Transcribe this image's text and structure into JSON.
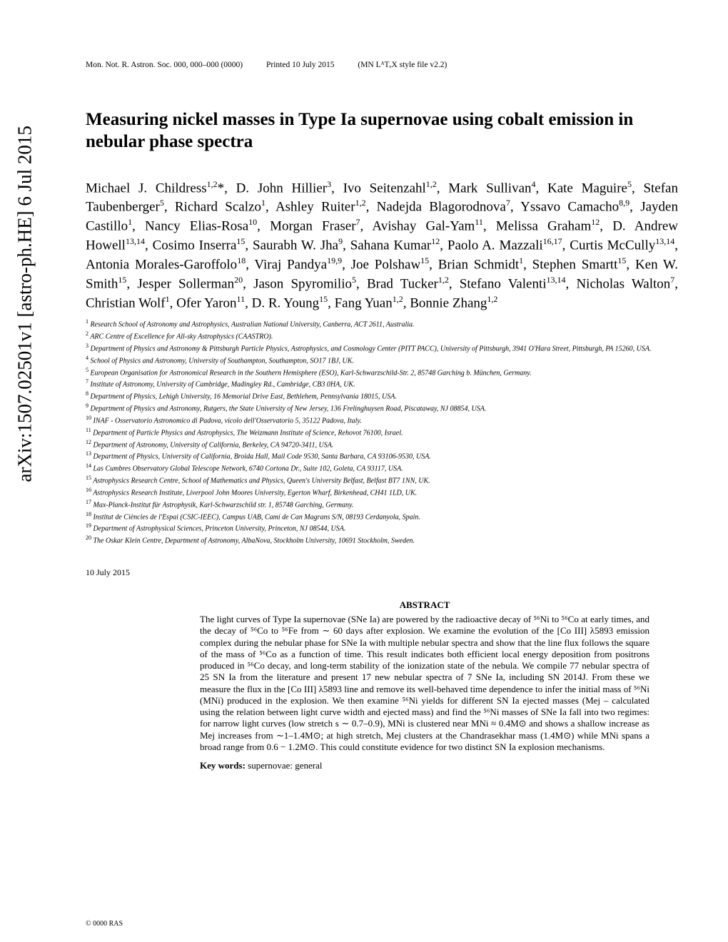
{
  "arxiv_id": "arXiv:1507.02501v1  [astro-ph.HE]  6 Jul 2015",
  "header": {
    "journal": "Mon. Not. R. Astron. Soc. 000, 000–000 (0000)",
    "printed": "Printed 10 July 2015",
    "style": "(MN LᴬTₑX style file v2.2)"
  },
  "title": "Measuring nickel masses in Type Ia supernovae using cobalt emission in nebular phase spectra",
  "authors_html": "Michael J. Childress<sup>1,2</sup>*, D. John Hillier<sup>3</sup>, Ivo Seitenzahl<sup>1,2</sup>, Mark Sullivan<sup>4</sup>, Kate Maguire<sup>5</sup>, Stefan Taubenberger<sup>5</sup>, Richard Scalzo<sup>1</sup>, Ashley Ruiter<sup>1,2</sup>, Nadejda Blagorodnova<sup>7</sup>, Yssavo Camacho<sup>8,9</sup>, Jayden Castillo<sup>1</sup>, Nancy Elias-Rosa<sup>10</sup>, Morgan Fraser<sup>7</sup>, Avishay Gal-Yam<sup>11</sup>, Melissa Graham<sup>12</sup>, D. Andrew Howell<sup>13,14</sup>, Cosimo Inserra<sup>15</sup>, Saurabh W. Jha<sup>9</sup>, Sahana Kumar<sup>12</sup>, Paolo A. Mazzali<sup>16,17</sup>, Curtis McCully<sup>13,14</sup>, Antonia Morales-Garoffolo<sup>18</sup>, Viraj Pandya<sup>19,9</sup>, Joe Polshaw<sup>15</sup>, Brian Schmidt<sup>1</sup>, Stephen Smartt<sup>15</sup>, Ken W. Smith<sup>15</sup>, Jesper Sollerman<sup>20</sup>, Jason Spyromilio<sup>5</sup>, Brad Tucker<sup>1,2</sup>, Stefano Valenti<sup>13,14</sup>, Nicholas Walton<sup>7</sup>, Christian Wolf<sup>1</sup>, Ofer Yaron<sup>11</sup>, D. R. Young<sup>15</sup>, Fang Yuan<sup>1,2</sup>, Bonnie Zhang<sup>1,2</sup>",
  "affiliations": [
    "Research School of Astronomy and Astrophysics, Australian National University, Canberra, ACT 2611, Australia.",
    "ARC Centre of Excellence for All-sky Astrophysics (CAASTRO).",
    "Department of Physics and Astronomy & Pittsburgh Particle Physics, Astrophysics, and Cosmology Center (PITT PACC), University of Pittsburgh, 3941 O'Hara Street, Pittsburgh, PA 15260, USA.",
    "School of Physics and Astronomy, University of Southampton, Southampton, SO17 1BJ, UK.",
    "European Organisation for Astronomical Research in the Southern Hemisphere (ESO), Karl-Schwarzschild-Str. 2, 85748 Garching b. München, Germany.",
    "Institute of Astronomy, University of Cambridge, Madingley Rd., Cambridge, CB3 0HA, UK.",
    "Department of Physics, Lehigh University, 16 Memorial Drive East, Bethlehem, Pennsylvania 18015, USA.",
    "Department of Physics and Astronomy, Rutgers, the State University of New Jersey, 136 Frelinghuysen Road, Piscataway, NJ 08854, USA.",
    "INAF - Osservatorio Astronomico di Padova, vicolo dell'Osservatorio 5, 35122 Padova, Italy.",
    "Department of Particle Physics and Astrophysics, The Weizmann Institute of Science, Rehovot 76100, Israel.",
    "Department of Astronomy, University of California, Berkeley, CA 94720-3411, USA.",
    "Department of Physics, University of California, Broida Hall, Mail Code 9530, Santa Barbara, CA 93106-9530, USA.",
    "Las Cumbres Observatory Global Telescope Network, 6740 Cortona Dr., Suite 102, Goleta, CA 93117, USA.",
    "Astrophysics Research Centre, School of Mathematics and Physics, Queen's University Belfast, Belfast BT7 1NN, UK.",
    "Astrophysics Research Institute, Liverpool John Moores University, Egerton Wharf, Birkenhead, CH41 1LD, UK.",
    "Max-Planck-Institut für Astrophysik, Karl-Schwarzschild str. 1, 85748 Garching, Germany.",
    "Institut de Ciències de l'Espai (CSIC-IEEC), Campus UAB, Camí de Can Magrans S/N, 08193 Cerdanyola, Spain.",
    "Department of Astrophysical Sciences, Princeton University, Princeton, NJ 08544, USA.",
    "The Oskar Klein Centre, Department of Astronomy, AlbaNova, Stockholm University, 10691 Stockholm, Sweden."
  ],
  "affiliation_numbers": [
    "1",
    "2",
    "3",
    "4",
    "5",
    "7",
    "8",
    "9",
    "10",
    "11",
    "12",
    "13",
    "14",
    "15",
    "16",
    "17",
    "18",
    "19",
    "20"
  ],
  "date": "10 July 2015",
  "abstract_heading": "ABSTRACT",
  "abstract_text": "The light curves of Type Ia supernovae (SNe Ia) are powered by the radioactive decay of ⁵⁶Ni to ⁵⁶Co at early times, and the decay of ⁵⁶Co to ⁵⁶Fe from ∼ 60 days after explosion. We examine the evolution of the [Co III] λ5893 emission complex during the nebular phase for SNe Ia with multiple nebular spectra and show that the line flux follows the square of the mass of ⁵⁶Co as a function of time. This result indicates both efficient local energy deposition from positrons produced in ⁵⁶Co decay, and long-term stability of the ionization state of the nebula. We compile 77 nebular spectra of 25 SN Ia from the literature and present 17 new nebular spectra of 7 SNe Ia, including SN 2014J. From these we measure the flux in the [Co III] λ5893 line and remove its well-behaved time dependence to infer the initial mass of ⁵⁶Ni (MNi) produced in the explosion. We then examine ⁵⁶Ni yields for different SN Ia ejected masses (Mej – calculated using the relation between light curve width and ejected mass) and find the ⁵⁶Ni masses of SNe Ia fall into two regimes: for narrow light curves (low stretch s ∼ 0.7–0.9), MNi is clustered near MNi ≈ 0.4M⊙ and shows a shallow increase as Mej increases from ∼1–1.4M⊙; at high stretch, Mej clusters at the Chandrasekhar mass (1.4M⊙) while MNi spans a broad range from 0.6 − 1.2M⊙. This could constitute evidence for two distinct SN Ia explosion mechanisms.",
  "keywords_label": "Key words:",
  "keywords_text": "supernovae: general",
  "copyright": "© 0000 RAS"
}
